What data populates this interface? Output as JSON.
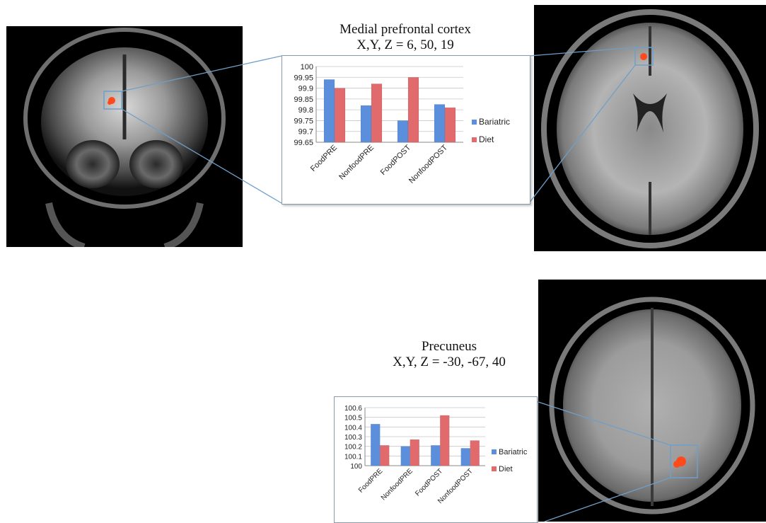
{
  "figure": {
    "top": {
      "title_line1": "Medial prefrontal cortex",
      "title_line2": "X,Y, Z = 6, 50, 19"
    },
    "bottom": {
      "title_line1": "Precuneus",
      "title_line2": "X,Y, Z = -30, -67, 40"
    },
    "colors": {
      "bariatric": "#5b8fdc",
      "diet": "#e06a6c",
      "activation": "#ff4a1c",
      "connector": "#6f9fc8"
    }
  },
  "chart_data": [
    {
      "type": "bar",
      "title": "",
      "categories": [
        "FoodPRE",
        "NonfoodPRE",
        "FoodPOST",
        "NonfoodPOST"
      ],
      "series": [
        {
          "name": "Bariatric",
          "values": [
            99.94,
            99.82,
            99.75,
            99.825
          ]
        },
        {
          "name": "Diet",
          "values": [
            99.9,
            99.92,
            99.95,
            99.81
          ]
        }
      ],
      "ylim": [
        99.65,
        100
      ],
      "yticks": [
        "100",
        "99.95",
        "99.9",
        "99.85",
        "99.8",
        "99.75",
        "99.7",
        "99.65"
      ],
      "grid": true,
      "legend": "right"
    },
    {
      "type": "bar",
      "title": "",
      "categories": [
        "FoodPRE",
        "NonfoodPRE",
        "FoodPOST",
        "NonfoodPOST"
      ],
      "series": [
        {
          "name": "Bariatric",
          "values": [
            100.43,
            100.2,
            100.21,
            100.18
          ]
        },
        {
          "name": "Diet",
          "values": [
            100.21,
            100.27,
            100.52,
            100.26
          ]
        }
      ],
      "ylim": [
        100,
        100.6
      ],
      "yticks": [
        "100.6",
        "100.5",
        "100.4",
        "100.3",
        "100.2",
        "100.1",
        "100"
      ],
      "grid": true,
      "legend": "right"
    }
  ]
}
